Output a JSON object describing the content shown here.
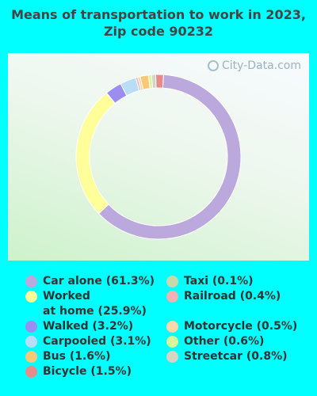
{
  "title": "Means of transportation to work in 2023, Zip code 90232",
  "watermark": "City-Data.com",
  "chart_data": {
    "type": "pie",
    "donut": true,
    "slices": [
      {
        "label": "Car alone (61.3%)",
        "value": 61.3,
        "color": "#BBA8DC"
      },
      {
        "label": "Worked\nat home (25.9%)",
        "value": 25.9,
        "color": "#FFFF99"
      },
      {
        "label": "Walked (3.2%)",
        "value": 3.2,
        "color": "#9C8EF0"
      },
      {
        "label": "Carpooled (3.1%)",
        "value": 3.1,
        "color": "#B9DDF7"
      },
      {
        "label": "Bus (1.6%)",
        "value": 1.6,
        "color": "#F7C878"
      },
      {
        "label": "Bicycle (1.5%)",
        "value": 1.5,
        "color": "#E98A8A"
      },
      {
        "label": "Taxi (0.1%)",
        "value": 0.1,
        "color": "#C7D9A8"
      },
      {
        "label": "Railroad (0.4%)",
        "value": 0.4,
        "color": "#F0B2B2"
      },
      {
        "label": "Motorcycle (0.5%)",
        "value": 0.5,
        "color": "#FBD6A8"
      },
      {
        "label": "Other (0.6%)",
        "value": 0.6,
        "color": "#D6F79A"
      },
      {
        "label": "Streetcar (0.8%)",
        "value": 0.8,
        "color": "#D8D4C2"
      }
    ],
    "draw_order": [
      0,
      1,
      6,
      2,
      3,
      7,
      8,
      4,
      9,
      10,
      5
    ]
  }
}
